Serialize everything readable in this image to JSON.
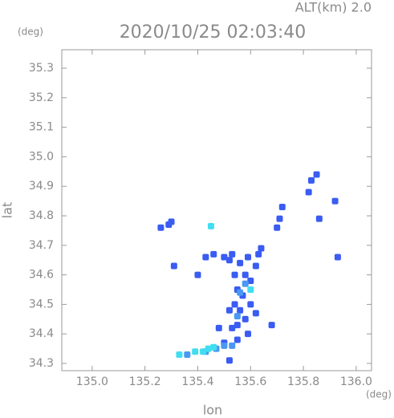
{
  "chart_data": {
    "type": "scatter",
    "title": "2020/10/25 02:03:40",
    "subtitle": "ALT(km) 2.0",
    "y_unit": "(deg)",
    "x_unit": "(deg)",
    "y_label": "lat",
    "x_label": "lon",
    "xlim": [
      134.885,
      136.058
    ],
    "ylim": [
      34.2755,
      35.3625
    ],
    "xticks": [
      {
        "value": 135,
        "label": "135.0"
      },
      135.2,
      135.4,
      135.6,
      135.8,
      {
        "value": 136,
        "label": "136.0"
      }
    ],
    "yticks": [
      34.3,
      34.4,
      34.5,
      34.6,
      34.7,
      34.8,
      34.9,
      {
        "value": 35,
        "label": "35.0"
      },
      35.1,
      35.2,
      35.3
    ],
    "series": [
      {
        "color": "#3a5cf2",
        "x": [
          135.85,
          135.83,
          135.82,
          135.92,
          135.86,
          135.93,
          135.72,
          135.71,
          135.7,
          135.26,
          135.29,
          135.3,
          135.43,
          135.46,
          135.5,
          135.53,
          135.52,
          135.56,
          135.59,
          135.64,
          135.63,
          135.62,
          135.54,
          135.58,
          135.6,
          135.55,
          135.57,
          135.54,
          135.52,
          135.56,
          135.6,
          135.62,
          135.58,
          135.55,
          135.53,
          135.48,
          135.59,
          135.68,
          135.5,
          135.55,
          135.52,
          135.4,
          135.31
        ],
        "values": [
          34.94,
          34.92,
          34.88,
          34.85,
          34.79,
          34.66,
          34.83,
          34.79,
          34.76,
          34.76,
          34.77,
          34.78,
          34.66,
          34.67,
          34.66,
          34.67,
          34.65,
          34.64,
          34.66,
          34.69,
          34.67,
          34.63,
          34.6,
          34.6,
          34.58,
          34.55,
          34.53,
          34.5,
          34.48,
          34.48,
          34.5,
          34.47,
          34.45,
          34.43,
          34.42,
          34.42,
          34.4,
          34.43,
          34.37,
          34.38,
          34.31,
          34.6,
          34.63
        ]
      },
      {
        "color": "#4a98f2",
        "x": [
          135.56,
          135.58,
          135.55,
          135.47,
          135.43,
          135.5,
          135.53,
          135.36
        ],
        "values": [
          34.54,
          34.57,
          34.46,
          34.35,
          34.34,
          34.36,
          34.36,
          34.33
        ]
      },
      {
        "color": "#40def0",
        "x": [
          135.39,
          135.44,
          135.42,
          135.33,
          135.46,
          135.6,
          135.45
        ],
        "values": [
          34.34,
          34.35,
          34.34,
          34.33,
          34.355,
          34.55,
          34.765
        ]
      }
    ]
  }
}
